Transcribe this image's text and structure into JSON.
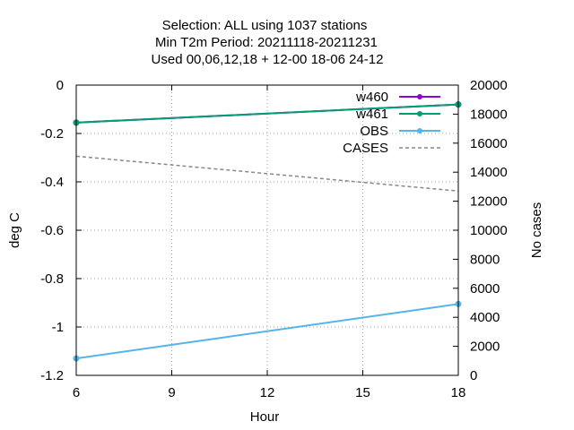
{
  "chart_data": {
    "type": "line",
    "title_lines": [
      "Selection: ALL using  1037 stations",
      "Min T2m   Period: 20211118-20211231",
      "Used  00,06,12,18 + 12-00 18-06 24-12"
    ],
    "xlabel": "Hour",
    "ylabel": "deg C",
    "y2label": "No cases",
    "xlim": [
      6,
      18
    ],
    "ylim": [
      -1.2,
      0
    ],
    "y2lim": [
      0,
      20000
    ],
    "xticks": [
      6,
      9,
      12,
      15,
      18
    ],
    "yticks": [
      0,
      -0.2,
      -0.4,
      -0.6,
      -0.8,
      -1,
      -1.2
    ],
    "y2ticks": [
      0,
      2000,
      4000,
      6000,
      8000,
      10000,
      12000,
      14000,
      16000,
      18000,
      20000
    ],
    "xtick_labels": [
      "6",
      "9",
      "12",
      "15",
      "18"
    ],
    "ytick_labels": [
      "0",
      "-0.2",
      "-0.4",
      "-0.6",
      "-0.8",
      "-1",
      "-1.2"
    ],
    "y2tick_labels": [
      "0",
      "2000",
      "4000",
      "6000",
      "8000",
      "10000",
      "12000",
      "14000",
      "16000",
      "18000",
      "20000"
    ],
    "grid": true,
    "legend_position": "top-right",
    "series": [
      {
        "name": "w460",
        "axis": "y",
        "color": "#9400d3",
        "style": "line-points",
        "x": [
          6,
          18
        ],
        "values": [
          -0.155,
          -0.08
        ]
      },
      {
        "name": "w461",
        "axis": "y",
        "color": "#009e73",
        "style": "line-points",
        "x": [
          6,
          18
        ],
        "values": [
          -0.155,
          -0.08
        ]
      },
      {
        "name": "OBS",
        "axis": "y",
        "color": "#56b4e9",
        "style": "line-points",
        "x": [
          6,
          18
        ],
        "values": [
          -1.13,
          -0.905
        ]
      },
      {
        "name": "CASES",
        "axis": "y2",
        "color": "#888888",
        "style": "dashed",
        "x": [
          6,
          18
        ],
        "values": [
          15100,
          12700
        ]
      }
    ]
  }
}
